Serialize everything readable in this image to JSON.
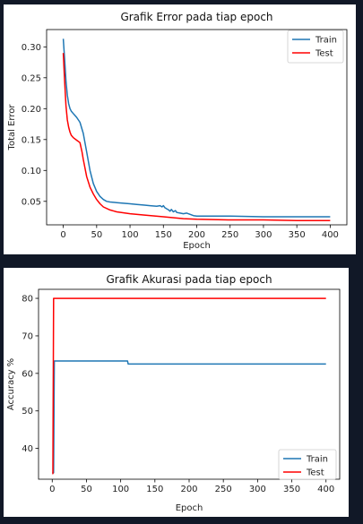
{
  "chart_data": [
    {
      "type": "line",
      "title": "Grafik Error pada tiap epoch",
      "xlabel": "Epoch",
      "ylabel": "Total Error",
      "xlim": [
        -25,
        425
      ],
      "ylim": [
        0.012,
        0.328
      ],
      "xticks": [
        0,
        50,
        100,
        150,
        200,
        250,
        300,
        350,
        400
      ],
      "yticks": [
        0.05,
        0.1,
        0.15,
        0.2,
        0.25,
        0.3
      ],
      "ytick_labels": [
        "0.05",
        "0.10",
        "0.15",
        "0.20",
        "0.25",
        "0.30"
      ],
      "grid": false,
      "legend_position": "top-right",
      "series": [
        {
          "name": "Train",
          "color": "#1f77b4",
          "x": [
            0,
            2,
            4,
            6,
            8,
            10,
            12,
            15,
            20,
            25,
            30,
            35,
            40,
            45,
            50,
            55,
            60,
            65,
            70,
            80,
            90,
            100,
            110,
            120,
            130,
            140,
            145,
            148,
            150,
            152,
            155,
            158,
            160,
            162,
            165,
            168,
            170,
            175,
            180,
            185,
            190,
            195,
            200,
            220,
            250,
            300,
            350,
            400
          ],
          "values": [
            0.313,
            0.28,
            0.245,
            0.222,
            0.208,
            0.2,
            0.196,
            0.192,
            0.186,
            0.178,
            0.16,
            0.13,
            0.1,
            0.079,
            0.066,
            0.058,
            0.053,
            0.05,
            0.049,
            0.048,
            0.047,
            0.046,
            0.045,
            0.044,
            0.043,
            0.042,
            0.043,
            0.041,
            0.043,
            0.04,
            0.038,
            0.036,
            0.034,
            0.037,
            0.033,
            0.035,
            0.032,
            0.031,
            0.03,
            0.031,
            0.029,
            0.027,
            0.026,
            0.026,
            0.026,
            0.025,
            0.025,
            0.025
          ]
        },
        {
          "name": "Test",
          "color": "#ff0000",
          "x": [
            0,
            2,
            4,
            6,
            8,
            10,
            12,
            15,
            20,
            25,
            28,
            30,
            35,
            40,
            45,
            50,
            55,
            60,
            70,
            80,
            100,
            120,
            150,
            180,
            200,
            250,
            300,
            350,
            400
          ],
          "values": [
            0.29,
            0.245,
            0.205,
            0.182,
            0.17,
            0.162,
            0.157,
            0.153,
            0.149,
            0.145,
            0.13,
            0.118,
            0.09,
            0.073,
            0.062,
            0.053,
            0.046,
            0.041,
            0.036,
            0.033,
            0.03,
            0.028,
            0.025,
            0.022,
            0.021,
            0.02,
            0.02,
            0.019,
            0.019
          ]
        }
      ]
    },
    {
      "type": "line",
      "title": "Grafik Akurasi pada tiap epoch",
      "xlabel": "Epoch",
      "ylabel": "Accuracy %",
      "xlim": [
        -20,
        420
      ],
      "ylim": [
        31.8,
        82.4
      ],
      "xticks": [
        0,
        50,
        100,
        150,
        200,
        250,
        300,
        350,
        400
      ],
      "yticks": [
        40,
        50,
        60,
        70,
        80
      ],
      "ytick_labels": [
        "40",
        "50",
        "60",
        "70",
        "80"
      ],
      "grid": false,
      "legend_position": "bottom-right",
      "series": [
        {
          "name": "Train",
          "color": "#1f77b4",
          "x": [
            0,
            2,
            3,
            110,
            111,
            400
          ],
          "values": [
            33.5,
            33.5,
            63.3,
            63.3,
            62.5,
            62.5
          ]
        },
        {
          "name": "Test",
          "color": "#ff0000",
          "x": [
            0,
            1,
            2,
            400
          ],
          "values": [
            33.3,
            33.3,
            80.0,
            80.0
          ]
        }
      ]
    }
  ]
}
